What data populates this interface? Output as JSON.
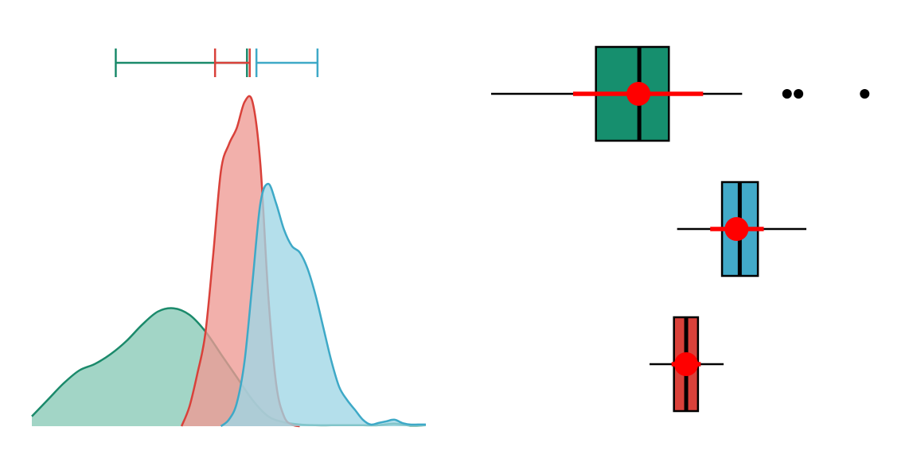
{
  "chart_data": [
    {
      "type": "area",
      "title": "",
      "xlabel": "",
      "ylabel": "",
      "grid": false,
      "legend": "none",
      "xlim": [
        0,
        100
      ],
      "ylim": [
        0,
        1
      ],
      "series": [
        {
          "color": "#1b8a6b",
          "fill": "#88c9b6",
          "x": [
            0,
            4,
            8,
            12,
            16,
            20,
            24,
            28,
            32,
            36,
            40,
            44,
            48,
            52,
            56,
            60,
            64,
            68,
            72,
            76,
            80,
            84,
            88,
            92,
            96,
            100
          ],
          "y": [
            0.03,
            0.08,
            0.13,
            0.17,
            0.19,
            0.22,
            0.26,
            0.31,
            0.35,
            0.36,
            0.34,
            0.29,
            0.22,
            0.15,
            0.08,
            0.03,
            0.012,
            0.005,
            0.003,
            0.003,
            0.003,
            0.003,
            0.003,
            0.008,
            0.002,
            0.003
          ]
        },
        {
          "color": "#d9413a",
          "fill": "#ee9a94",
          "x": [
            38,
            40,
            42,
            44,
            46,
            48,
            50,
            52,
            54,
            56,
            58,
            60,
            62,
            64,
            66,
            68
          ],
          "y": [
            0,
            0.06,
            0.16,
            0.28,
            0.52,
            0.78,
            0.86,
            0.91,
            0.99,
            0.99,
            0.8,
            0.4,
            0.13,
            0.03,
            0.005,
            0
          ]
        },
        {
          "color": "#3ea9c7",
          "fill": "#9fd6e6",
          "x": [
            48,
            50,
            52,
            54,
            56,
            58,
            60,
            62,
            64,
            66,
            68,
            70,
            72,
            74,
            76,
            78,
            80,
            82,
            84,
            86,
            88,
            90,
            92,
            94,
            96,
            98,
            100
          ],
          "y": [
            0,
            0.02,
            0.07,
            0.2,
            0.44,
            0.68,
            0.74,
            0.68,
            0.6,
            0.55,
            0.53,
            0.48,
            0.4,
            0.3,
            0.2,
            0.12,
            0.08,
            0.05,
            0.02,
            0.005,
            0.01,
            0.015,
            0.02,
            0.01,
            0.005,
            0.005,
            0.005
          ]
        }
      ],
      "intervals": [
        {
          "color": "#1b8a6b",
          "low": 21.3,
          "high": 54.6
        },
        {
          "color": "#d9413a",
          "low": 46.5,
          "high": 55.3
        },
        {
          "color": "#3ea9c7",
          "low": 57.0,
          "high": 72.5
        }
      ]
    },
    {
      "type": "box",
      "title": "",
      "xlabel": "",
      "ylabel": "",
      "grid": false,
      "legend": "none",
      "xlim": [
        0,
        100
      ],
      "boxes": [
        {
          "fill": "#168f6e",
          "whisker_low": 0,
          "q1": 26.6,
          "median": 37.6,
          "q3": 45.1,
          "whisker_high": 63.7,
          "outliers": [
            75.1,
            78.0,
            94.8
          ],
          "mean": 37.4,
          "ci_low": 20.8,
          "ci_high": 53.8
        },
        {
          "fill": "#42aac9",
          "whisker_low": 47.2,
          "q1": 58.6,
          "median": 63.1,
          "q3": 67.7,
          "whisker_high": 80.0,
          "outliers": [],
          "mean": 62.3,
          "ci_low": 55.6,
          "ci_high": 69.2
        },
        {
          "fill": "#d9413a",
          "whisker_low": 40.2,
          "q1": 46.4,
          "median": 49.5,
          "q3": 52.5,
          "whisker_high": 59.0,
          "outliers": [],
          "mean": 49.5,
          "ci_low": 45.8,
          "ci_high": 53.2
        }
      ]
    }
  ]
}
